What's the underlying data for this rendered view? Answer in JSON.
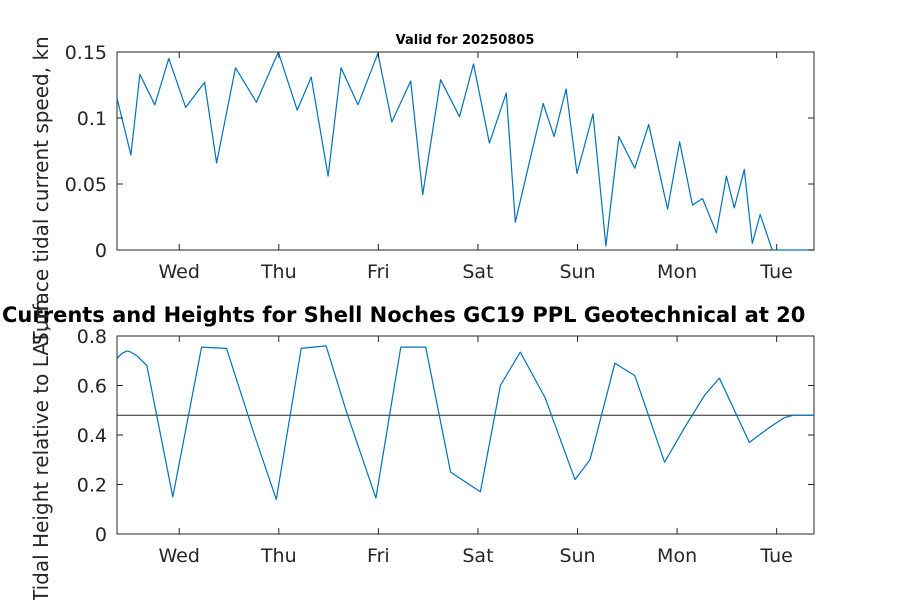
{
  "chart_data": [
    {
      "type": "line",
      "title": "Valid for 20250805",
      "ylabel": "Surface tidal current speed, kn",
      "xlabel": "",
      "ylim": [
        0,
        0.15
      ],
      "xlim": [
        0,
        7
      ],
      "yticks": [
        0,
        0.05,
        0.1,
        0.15
      ],
      "ytick_labels": [
        "0",
        "0.05",
        "0.1",
        "0.15"
      ],
      "xticks": [
        0.625,
        1.625,
        2.625,
        3.625,
        4.625,
        5.625,
        6.625
      ],
      "xtick_labels": [
        "Wed",
        "Thu",
        "Fri",
        "Sat",
        "Sun",
        "Mon",
        "Tue"
      ],
      "grid": false,
      "series": [
        {
          "color": "#0072BD",
          "x": [
            0,
            0.14,
            0.23,
            0.38,
            0.52,
            0.69,
            0.88,
            1.0,
            1.19,
            1.4,
            1.62,
            1.81,
            1.95,
            2.12,
            2.25,
            2.42,
            2.62,
            2.76,
            2.95,
            3.07,
            3.25,
            3.44,
            3.58,
            3.74,
            3.91,
            4.0,
            4.28,
            4.39,
            4.51,
            4.62,
            4.78,
            4.91,
            5.04,
            5.2,
            5.34,
            5.53,
            5.65,
            5.78,
            5.88,
            6.02,
            6.12,
            6.2,
            6.3,
            6.38,
            6.46,
            6.58,
            6.69,
            6.8,
            6.96,
            7.0
          ],
          "y": [
            0.115,
            0.072,
            0.133,
            0.11,
            0.145,
            0.108,
            0.127,
            0.066,
            0.138,
            0.112,
            0.15,
            0.106,
            0.131,
            0.056,
            0.138,
            0.11,
            0.149,
            0.097,
            0.128,
            0.042,
            0.129,
            0.101,
            0.141,
            0.081,
            0.119,
            0.021,
            0.111,
            0.086,
            0.122,
            0.058,
            0.103,
            0.003,
            0.086,
            0.062,
            0.095,
            0.031,
            0.082,
            0.034,
            0.039,
            0.013,
            0.056,
            0.032,
            0.061,
            0.005,
            0.027,
            0.0,
            0.0,
            0.0,
            0.0,
            0.0
          ]
        }
      ]
    },
    {
      "type": "line",
      "title": "Currents and Heights for Shell Noches   GC19 PPL  Geotechnical at 20",
      "ylabel": "Tidal Height relative to LAT, m",
      "xlabel": "",
      "ylim": [
        0,
        0.8
      ],
      "xlim": [
        0,
        7
      ],
      "yticks": [
        0,
        0.2,
        0.4,
        0.6,
        0.8
      ],
      "ytick_labels": [
        "0",
        "0.2",
        "0.4",
        "0.6",
        "0.8"
      ],
      "xticks": [
        0.625,
        1.625,
        2.625,
        3.625,
        4.625,
        5.625,
        6.625
      ],
      "xtick_labels": [
        "Wed",
        "Thu",
        "Fri",
        "Sat",
        "Sun",
        "Mon",
        "Tue"
      ],
      "grid": false,
      "reference_line": 0.48,
      "series": [
        {
          "color": "#0072BD",
          "x": [
            0,
            0.05,
            0.1,
            0.14,
            0.2,
            0.3,
            0.56,
            0.85,
            1.1,
            1.38,
            1.6,
            1.85,
            2.1,
            2.3,
            2.6,
            2.85,
            3.1,
            3.35,
            3.65,
            3.85,
            4.05,
            4.3,
            4.6,
            4.75,
            5.0,
            5.2,
            5.5,
            5.7,
            5.9,
            6.05,
            6.35,
            6.55,
            6.7,
            6.8,
            7.0
          ],
          "y": [
            0.71,
            0.73,
            0.74,
            0.735,
            0.72,
            0.68,
            0.15,
            0.755,
            0.75,
            0.4,
            0.14,
            0.75,
            0.76,
            0.5,
            0.145,
            0.755,
            0.755,
            0.25,
            0.17,
            0.6,
            0.735,
            0.55,
            0.22,
            0.3,
            0.69,
            0.64,
            0.29,
            0.43,
            0.56,
            0.63,
            0.37,
            0.43,
            0.47,
            0.48,
            0.48
          ]
        }
      ]
    }
  ]
}
